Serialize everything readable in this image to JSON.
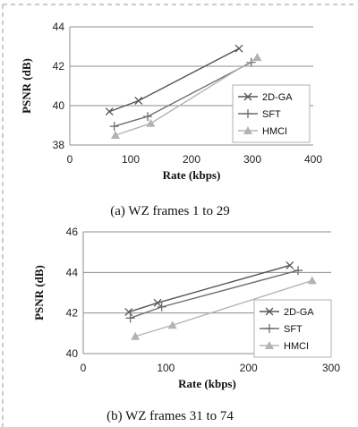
{
  "colors": {
    "series": [
      "#555555",
      "#6e6e6e",
      "#b3b3b3"
    ],
    "grid": "#8c8c8c",
    "frame_dash": "#999999"
  },
  "chart_data": [
    {
      "type": "line",
      "caption": "(a) WZ frames 1 to 29",
      "xlabel": "Rate (kbps)",
      "ylabel": "PSNR (dB)",
      "xlim": [
        0,
        400
      ],
      "ylim": [
        38,
        44
      ],
      "xticks": [
        "0",
        "100",
        "200",
        "300",
        "400"
      ],
      "yticks": [
        "38",
        "40",
        "42",
        "44"
      ],
      "grid": "horizontal",
      "legend_position": "right",
      "series": [
        {
          "name": "2D-GA",
          "marker": "x",
          "points": [
            [
              65,
              39.7
            ],
            [
              113,
              40.25
            ],
            [
              278,
              42.9
            ]
          ]
        },
        {
          "name": "SFT",
          "marker": "+",
          "points": [
            [
              73,
              38.95
            ],
            [
              128,
              39.45
            ],
            [
              298,
              42.2
            ]
          ]
        },
        {
          "name": "HMCI",
          "marker": "triangle",
          "points": [
            [
              75,
              38.5
            ],
            [
              133,
              39.1
            ],
            [
              308,
              42.45
            ]
          ]
        }
      ]
    },
    {
      "type": "line",
      "caption": "(b) WZ frames 31 to 74",
      "xlabel": "Rate (kbps)",
      "ylabel": "PSNR (dB)",
      "xlim": [
        0,
        300
      ],
      "ylim": [
        40,
        46
      ],
      "xticks": [
        "0",
        "100",
        "200",
        "300"
      ],
      "yticks": [
        "40",
        "42",
        "44",
        "46"
      ],
      "grid": "horizontal",
      "legend_position": "right",
      "series": [
        {
          "name": "2D-GA",
          "marker": "x",
          "points": [
            [
              55,
              42.05
            ],
            [
              90,
              42.5
            ],
            [
              250,
              44.35
            ]
          ]
        },
        {
          "name": "SFT",
          "marker": "+",
          "points": [
            [
              57,
              41.75
            ],
            [
              95,
              42.3
            ],
            [
              260,
              44.1
            ]
          ]
        },
        {
          "name": "HMCI",
          "marker": "triangle",
          "points": [
            [
              63,
              40.85
            ],
            [
              108,
              41.4
            ],
            [
              277,
              43.6
            ]
          ]
        }
      ]
    }
  ]
}
